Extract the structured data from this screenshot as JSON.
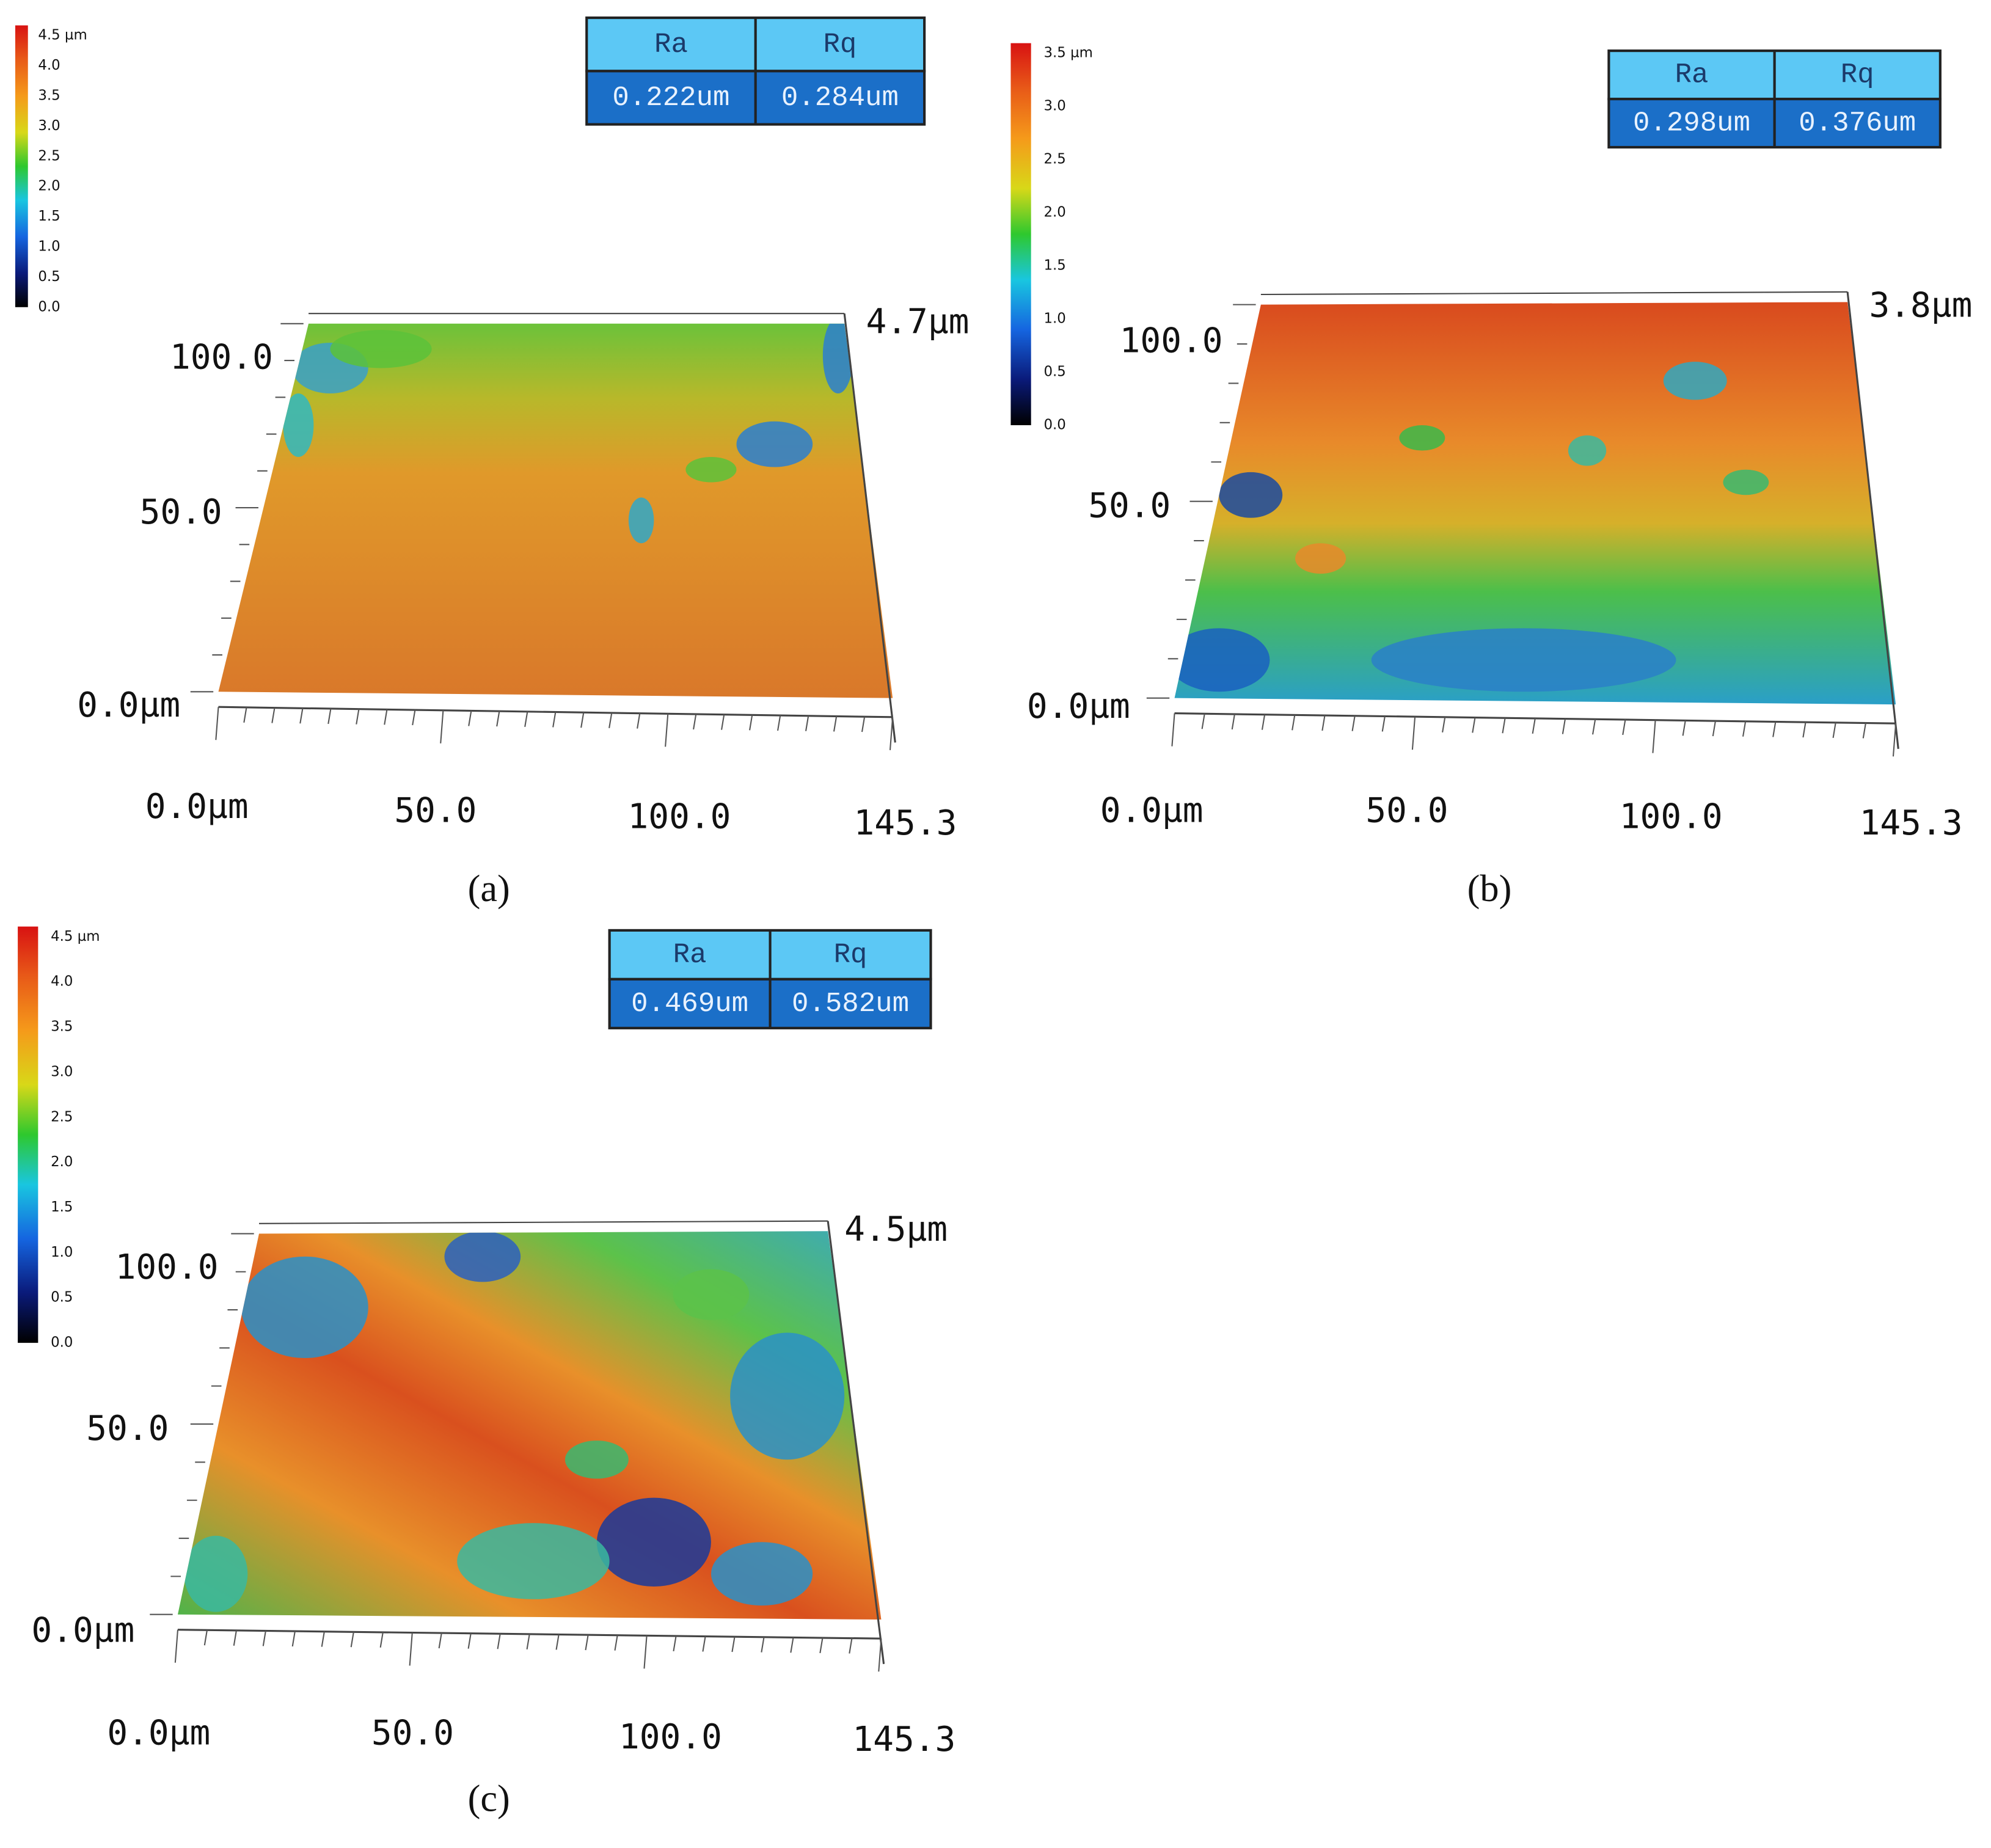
{
  "panels": [
    {
      "caption": "(a)",
      "colorbar": {
        "ticks": [
          "4.5 µm",
          "4.0",
          "3.5",
          "3.0",
          "2.5",
          "2.0",
          "1.5",
          "1.0",
          "0.5",
          "0.0"
        ]
      },
      "table": {
        "header": [
          "Ra",
          "Rq"
        ],
        "row": [
          "0.222um",
          "0.284um"
        ]
      },
      "axes": {
        "z_top": "4.7μm",
        "y_labels": [
          "100.0",
          "50.0",
          "0.0μm"
        ],
        "x_labels": [
          "0.0μm",
          "50.0",
          "100.0",
          "145.3"
        ]
      }
    },
    {
      "caption": "(b)",
      "colorbar": {
        "ticks": [
          "3.5 µm",
          "3.0",
          "2.5",
          "2.0",
          "1.5",
          "1.0",
          "0.5",
          "0.0"
        ]
      },
      "table": {
        "header": [
          "Ra",
          "Rq"
        ],
        "row": [
          "0.298um",
          "0.376um"
        ]
      },
      "axes": {
        "z_top": "3.8μm",
        "y_labels": [
          "100.0",
          "50.0",
          "0.0μm"
        ],
        "x_labels": [
          "0.0μm",
          "50.0",
          "100.0",
          "145.3"
        ]
      }
    },
    {
      "caption": "(c)",
      "colorbar": {
        "ticks": [
          "4.5 µm",
          "4.0",
          "3.5",
          "3.0",
          "2.5",
          "2.0",
          "1.5",
          "1.0",
          "0.5",
          "0.0"
        ]
      },
      "table": {
        "header": [
          "Ra",
          "Rq"
        ],
        "row": [
          "0.469um",
          "0.582um"
        ]
      },
      "axes": {
        "z_top": "4.5μm",
        "y_labels": [
          "100.0",
          "50.0",
          "0.0μm"
        ],
        "x_labels": [
          "0.0μm",
          "50.0",
          "100.0",
          "145.3"
        ]
      }
    }
  ]
}
